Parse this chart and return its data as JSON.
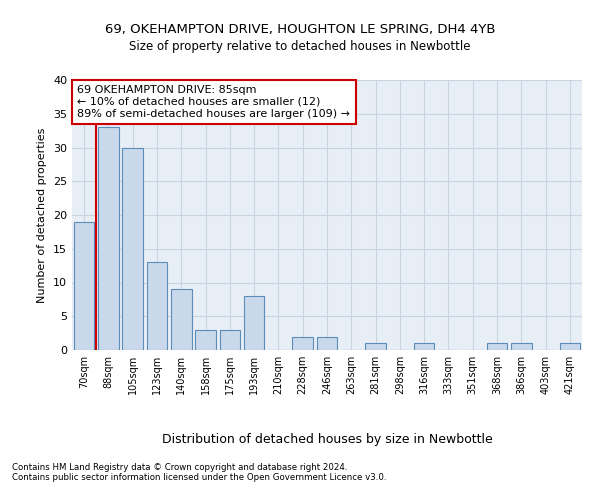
{
  "title1": "69, OKEHAMPTON DRIVE, HOUGHTON LE SPRING, DH4 4YB",
  "title2": "Size of property relative to detached houses in Newbottle",
  "xlabel": "Distribution of detached houses by size in Newbottle",
  "ylabel": "Number of detached properties",
  "categories": [
    "70sqm",
    "88sqm",
    "105sqm",
    "123sqm",
    "140sqm",
    "158sqm",
    "175sqm",
    "193sqm",
    "210sqm",
    "228sqm",
    "246sqm",
    "263sqm",
    "281sqm",
    "298sqm",
    "316sqm",
    "333sqm",
    "351sqm",
    "368sqm",
    "386sqm",
    "403sqm",
    "421sqm"
  ],
  "values": [
    19,
    33,
    30,
    13,
    9,
    3,
    3,
    8,
    0,
    2,
    2,
    0,
    1,
    0,
    1,
    0,
    0,
    1,
    1,
    0,
    1
  ],
  "bar_color": "#c9d9eb",
  "bar_edge_color": "#5b8db8",
  "vline_color": "#cc0000",
  "vline_x": 0.5,
  "annotation_text": "69 OKEHAMPTON DRIVE: 85sqm\n← 10% of detached houses are smaller (12)\n89% of semi-detached houses are larger (109) →",
  "annotation_box_edge": "#cc0000",
  "footer1": "Contains HM Land Registry data © Crown copyright and database right 2024.",
  "footer2": "Contains public sector information licensed under the Open Government Licence v3.0.",
  "ylim": [
    0,
    40
  ],
  "yticks": [
    0,
    5,
    10,
    15,
    20,
    25,
    30,
    35,
    40
  ],
  "grid_color": "#c8d4e0",
  "background_color": "#e8eef5"
}
